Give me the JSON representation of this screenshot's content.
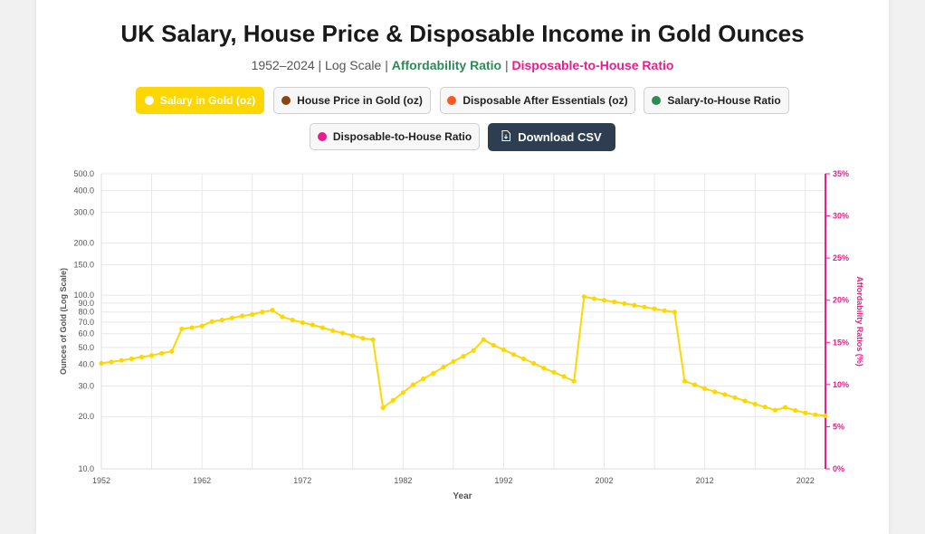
{
  "header": {
    "title": "UK Salary, House Price & Disposable Income in Gold Ounces",
    "subtitle_plain": "1952–2024 | Log Scale",
    "subtitle_sep": "|",
    "subtitle_green": "Affordability Ratio",
    "subtitle_pink": "Disposable-to-House Ratio"
  },
  "controls": {
    "buttons": [
      {
        "label": "Salary in Gold (oz)",
        "dot_color": "#ffffff",
        "active": true
      },
      {
        "label": "House Price in Gold (oz)",
        "dot_color": "#8b4513",
        "active": false
      },
      {
        "label": "Disposable After Essentials (oz)",
        "dot_color": "#ff5722",
        "active": false
      },
      {
        "label": "Salary-to-House Ratio",
        "dot_color": "#2e8b57",
        "active": false
      },
      {
        "label": "Disposable-to-House Ratio",
        "dot_color": "#e91e8c",
        "active": false
      }
    ],
    "download_label": "Download CSV",
    "download_icon": "file-download-icon"
  },
  "colors": {
    "salary": "#ffd700",
    "house": "#8b4513",
    "disposable": "#ff5722",
    "salary_to_house": "#2e8b57",
    "disposable_to_house": "#e91e8c",
    "grid": "#e8e8e8"
  },
  "chart_data": {
    "type": "line",
    "xlabel": "Year",
    "ylabel": "Ounces of Gold (Log Scale)",
    "y2label": "Affordability Ratios (%)",
    "y_scale": "log",
    "ylim": [
      10,
      500
    ],
    "y2lim": [
      0,
      35
    ],
    "xlim": [
      1952,
      2024
    ],
    "x_ticks": [
      1952,
      1962,
      1972,
      1982,
      1992,
      2002,
      2012,
      2022
    ],
    "y_ticks": [
      "10.0",
      "20.0",
      "30.0",
      "40.0",
      "50.0",
      "60.0",
      "70.0",
      "80.0",
      "90.0",
      "100.0",
      "150.0",
      "200.0",
      "300.0",
      "400.0",
      "500.0"
    ],
    "y2_ticks": [
      "0%",
      "5%",
      "10%",
      "15%",
      "20%",
      "25%",
      "30%",
      "35%"
    ],
    "grid": true,
    "series": [
      {
        "name": "Salary in Gold (oz)",
        "color": "#ffd700",
        "x": [
          1952,
          1953,
          1954,
          1955,
          1956,
          1957,
          1958,
          1959,
          1960,
          1961,
          1962,
          1963,
          1964,
          1965,
          1966,
          1967,
          1968,
          1969,
          1970,
          1971,
          1972,
          1973,
          1974,
          1975,
          1976,
          1977,
          1978,
          1979,
          1980,
          1981,
          1982,
          1983,
          1984,
          1985,
          1986,
          1987,
          1988,
          1989,
          1990,
          1991,
          1992,
          1993,
          1994,
          1995,
          1996,
          1997,
          1998,
          1999,
          2000,
          2001,
          2002,
          2003,
          2004,
          2005,
          2006,
          2007,
          2008,
          2009,
          2010,
          2011,
          2012,
          2013,
          2014,
          2015,
          2016,
          2017,
          2018,
          2019,
          2020,
          2021,
          2022,
          2023,
          2024
        ],
        "y": [
          40.5,
          41.3,
          42.1,
          43.0,
          44.0,
          45.0,
          46.3,
          47.5,
          64.0,
          65.0,
          66.5,
          70.5,
          72.0,
          74.0,
          76.0,
          77.5,
          80.0,
          82.0,
          75.0,
          72.0,
          69.5,
          67.5,
          65.0,
          62.5,
          60.5,
          58.5,
          56.5,
          55.5,
          22.5,
          24.8,
          27.5,
          30.5,
          33.0,
          35.5,
          38.5,
          41.5,
          44.5,
          48.0,
          55.5,
          51.5,
          48.5,
          45.5,
          43.0,
          40.5,
          38.0,
          36.0,
          34.0,
          32.0,
          98.0,
          95.5,
          93.5,
          91.5,
          89.5,
          87.5,
          85.5,
          83.5,
          81.5,
          80.0,
          32.0,
          30.5,
          29.0,
          27.8,
          26.8,
          25.7,
          24.6,
          23.6,
          22.7,
          21.8,
          22.6,
          21.7,
          21.0,
          20.5,
          20.2
        ]
      }
    ]
  }
}
